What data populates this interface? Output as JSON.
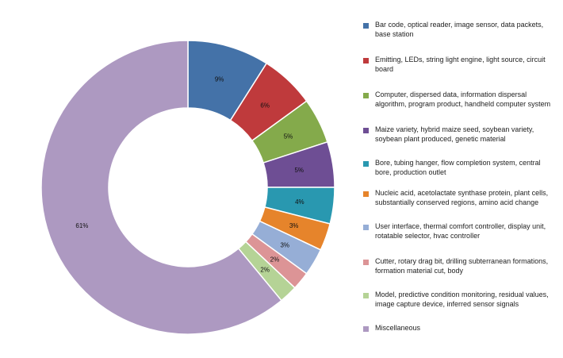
{
  "chart_data": {
    "type": "pie",
    "donut": true,
    "labels": [
      "Bar code, optical reader, image sensor, data packets, base station",
      "Emitting, LEDs, string light engine, light source, circuit board",
      "Computer, dispersed data, information dispersal algorithm, program product, handheld computer system",
      "Maize variety, hybrid maize seed, soybean variety, soybean plant produced, genetic material",
      "Bore, tubing hanger, flow completion system, central bore, production outlet",
      "Nucleic acid, acetolactate synthase protein, plant cells, substantially conserved regions, amino acid change",
      "User interface, thermal comfort controller, display unit, rotatable selector, hvac controller",
      "Cutter, rotary drag bit, drilling subterranean formations, formation material cut, body",
      "Model, predictive condition monitoring, residual values, image capture device, inferred sensor signals",
      "Miscellaneous"
    ],
    "values": [
      9,
      6,
      5,
      5,
      4,
      3,
      3,
      2,
      2,
      61
    ],
    "data_labels": [
      "9%",
      "6%",
      "5%",
      "5%",
      "4%",
      "3%",
      "3%",
      "2%",
      "2%",
      "61%"
    ],
    "colors": [
      "#4472a8",
      "#bf3a3c",
      "#84aa4b",
      "#6e4e94",
      "#2998b0",
      "#e6842b",
      "#96aed6",
      "#dc9496",
      "#b5d396",
      "#ad99c1"
    ],
    "legend_position": "right"
  }
}
